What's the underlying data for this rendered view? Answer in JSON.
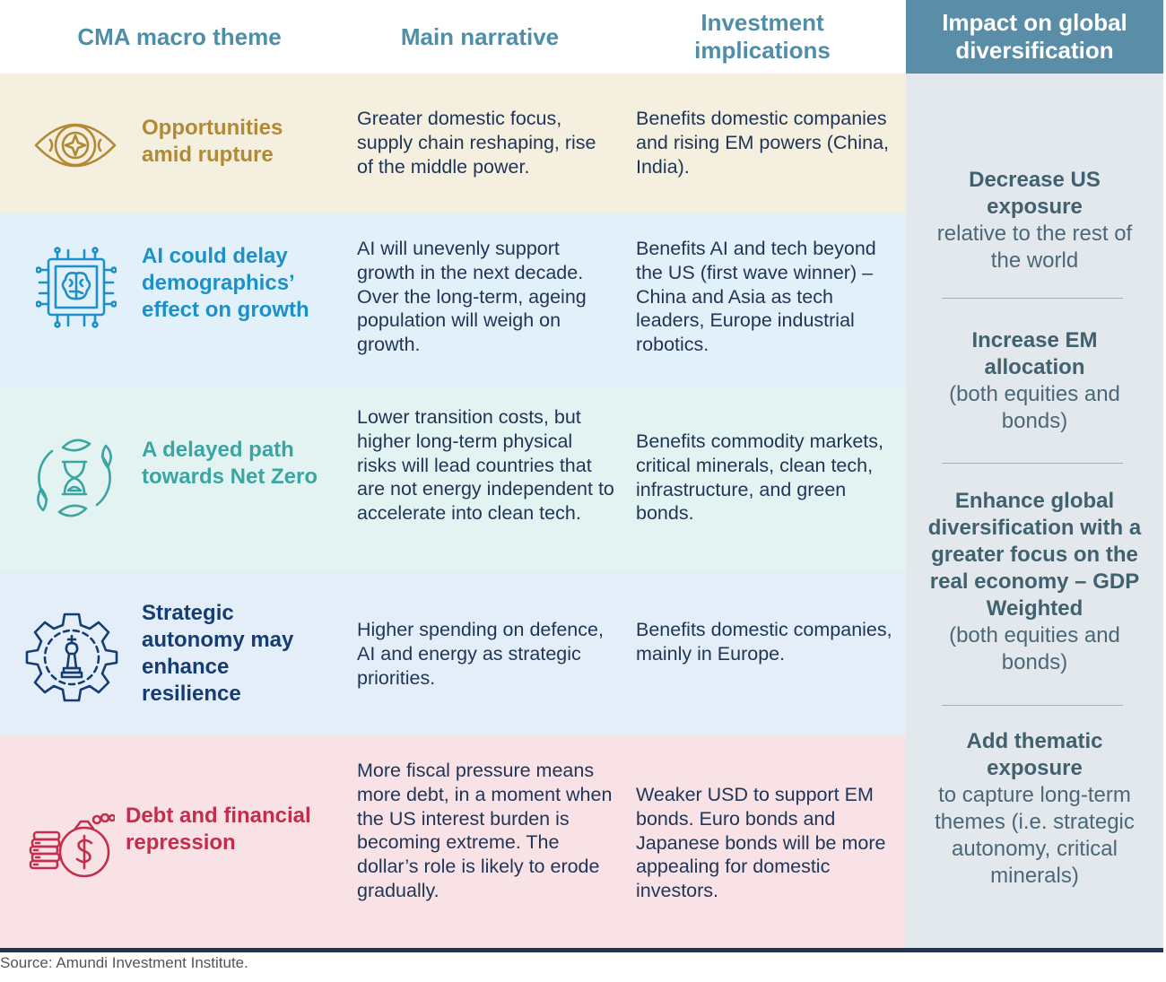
{
  "headers": {
    "theme": "CMA macro theme",
    "narrative": "Main narrative",
    "implications": "Investment implications",
    "impact": "Impact on global diversification"
  },
  "rows": [
    {
      "theme": "Opportunities amid rupture",
      "icon": "eye-icon",
      "narrative": "Greater domestic focus, supply chain reshaping, rise of the middle power.",
      "implications": "Benefits domestic companies and rising EM powers (China, India).",
      "bg": "#f5efe0",
      "color": "#b28a35"
    },
    {
      "theme": "AI could delay demographics’ effect on growth",
      "icon": "ai-brain-chip-icon",
      "narrative": "AI will unevenly support growth in the next decade. Over the long-term, ageing population will weigh on growth.",
      "implications": "Benefits AI and tech beyond the US (first wave winner) – China and Asia as tech leaders, Europe industrial robotics.",
      "bg": "#e2f0fa",
      "color": "#1e90c8"
    },
    {
      "theme": "A delayed path towards Net Zero",
      "icon": "hourglass-leaves-icon",
      "narrative": "Lower transition costs, but higher long-term physical risks will lead countries that are not energy independent to accelerate into clean tech.",
      "implications": "Benefits commodity markets, critical minerals, clean tech, infrastructure, and green bonds.",
      "bg": "#e3f3f2",
      "color": "#3aa5a3"
    },
    {
      "theme": "Strategic autonomy may enhance resilience",
      "icon": "gear-chess-king-icon",
      "narrative": "Higher spending on defence, AI and energy as strategic priorities.",
      "implications": "Benefits domestic companies, mainly in Europe.",
      "bg": "#e3eef8",
      "color": "#163d72"
    },
    {
      "theme": "Debt and financial repression",
      "icon": "money-bag-coins-icon",
      "narrative": "More fiscal pressure means more debt, in a moment when the US interest burden is becoming extreme. The dollar’s role is likely to erode gradually.",
      "implications": "Weaker USD to support EM bonds. Euro bonds and Japanese bonds will be more appealing for domestic investors.",
      "bg": "#f8e2e6",
      "color": "#c22f4d"
    }
  ],
  "impacts": [
    {
      "bold": "Decrease US exposure",
      "rest": "relative to the rest of the world"
    },
    {
      "bold": "Increase EM allocation",
      "rest": "(both equities and bonds)"
    },
    {
      "bold": "Enhance global diversification with a greater focus on the real economy – GDP Weighted",
      "rest": "(both equities and bonds)"
    },
    {
      "bold": "Add thematic exposure",
      "rest": "to capture long-term themes (i.e. strategic autonomy, critical minerals)"
    }
  ],
  "source": "Source: Amundi Investment Institute."
}
